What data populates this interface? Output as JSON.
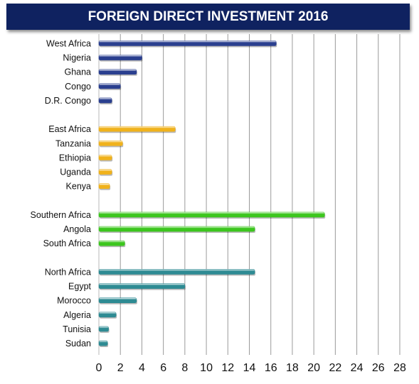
{
  "chart_data": {
    "type": "bar",
    "orientation": "horizontal",
    "title": "FOREIGN DIRECT INVESTMENT 2016",
    "xlim": [
      0,
      28
    ],
    "xticks": [
      0,
      2,
      4,
      6,
      8,
      10,
      12,
      14,
      16,
      18,
      20,
      22,
      24,
      26,
      28
    ],
    "grid": "vertical",
    "groups": [
      {
        "color": "#2a3f8f",
        "items": [
          {
            "label": "West Africa",
            "value": 16.5
          },
          {
            "label": "Nigeria",
            "value": 4.0
          },
          {
            "label": "Ghana",
            "value": 3.5
          },
          {
            "label": "Congo",
            "value": 2.0
          },
          {
            "label": "D.R. Congo",
            "value": 1.2
          }
        ]
      },
      {
        "color": "#f0b21c",
        "items": [
          {
            "label": "East Africa",
            "value": 7.1
          },
          {
            "label": "Tanzania",
            "value": 2.2
          },
          {
            "label": "Ethiopia",
            "value": 1.2
          },
          {
            "label": "Uganda",
            "value": 1.2
          },
          {
            "label": "Kenya",
            "value": 1.0
          }
        ]
      },
      {
        "color": "#3cc61e",
        "items": [
          {
            "label": "Southern Africa",
            "value": 21.0
          },
          {
            "label": "Angola",
            "value": 14.5
          },
          {
            "label": "South Africa",
            "value": 2.4
          }
        ]
      },
      {
        "color": "#2e8b93",
        "items": [
          {
            "label": "North Africa",
            "value": 14.5
          },
          {
            "label": "Egypt",
            "value": 8.0
          },
          {
            "label": "Morocco",
            "value": 3.5
          },
          {
            "label": "Algeria",
            "value": 1.6
          },
          {
            "label": "Tunisia",
            "value": 0.9
          },
          {
            "label": "Sudan",
            "value": 0.8
          }
        ]
      }
    ]
  }
}
